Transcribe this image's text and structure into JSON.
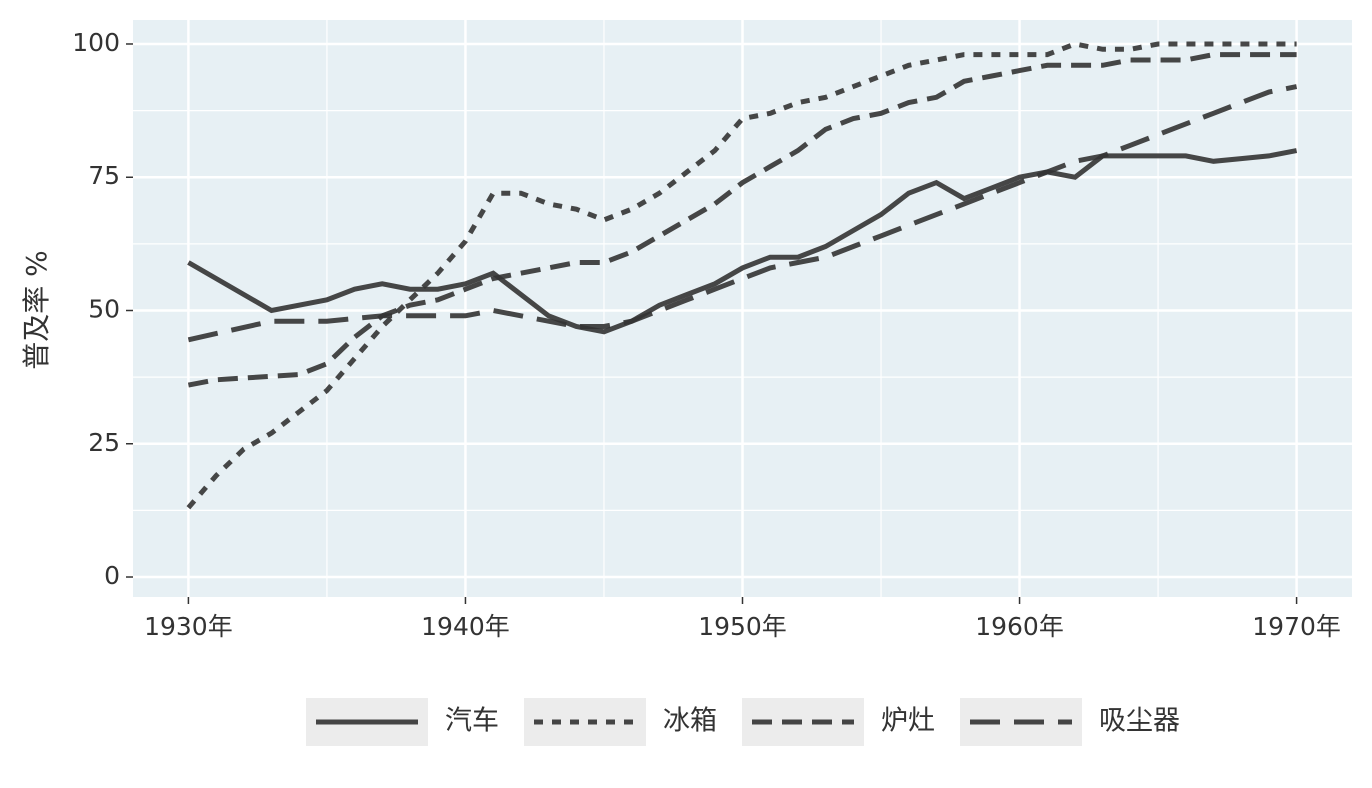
{
  "chart_data": {
    "type": "line",
    "y_label": "普及率 %",
    "xlim": [
      1928,
      1972
    ],
    "ylim": [
      -3.75,
      104.5
    ],
    "xticks": [
      {
        "value": 1930,
        "label": "1930年"
      },
      {
        "value": 1940,
        "label": "1940年"
      },
      {
        "value": 1950,
        "label": "1950年"
      },
      {
        "value": 1960,
        "label": "1960年"
      },
      {
        "value": 1970,
        "label": "1970年"
      }
    ],
    "yticks": [
      0,
      25,
      50,
      75,
      100
    ],
    "grid": true,
    "legend": "bottom",
    "series": [
      {
        "name": "汽车",
        "color": "#333333",
        "linetype": "solid",
        "x": [
          1930,
          1933,
          1935,
          1936,
          1937,
          1938,
          1939,
          1940,
          1941,
          1942,
          1943,
          1944,
          1945,
          1946,
          1947,
          1948,
          1949,
          1950,
          1951,
          1952,
          1953,
          1954,
          1955,
          1956,
          1957,
          1958,
          1959,
          1960,
          1961,
          1962,
          1963,
          1964,
          1965,
          1966,
          1967,
          1968,
          1969,
          1970
        ],
        "values": [
          59,
          50,
          52,
          54,
          55,
          54,
          54,
          55,
          57,
          53,
          49,
          47,
          46,
          48,
          51,
          53,
          55,
          58,
          60,
          60,
          62,
          65,
          68,
          72,
          74,
          71,
          73,
          75,
          76,
          75,
          79,
          79,
          79,
          79,
          78,
          78.5,
          79,
          80
        ]
      },
      {
        "name": "冰箱",
        "color": "#333333",
        "linetype": "dotted",
        "x": [
          1930,
          1931,
          1932,
          1933,
          1934,
          1935,
          1936,
          1937,
          1938,
          1939,
          1940,
          1941,
          1942,
          1943,
          1944,
          1945,
          1946,
          1947,
          1948,
          1949,
          1950,
          1951,
          1952,
          1953,
          1954,
          1955,
          1956,
          1957,
          1958,
          1959,
          1960,
          1961,
          1962,
          1963,
          1964,
          1965,
          1966,
          1967,
          1968,
          1969,
          1970
        ],
        "values": [
          13,
          19,
          24,
          27,
          31,
          35,
          41,
          47,
          52,
          57,
          63,
          72,
          72,
          70,
          69,
          67,
          69,
          72,
          76,
          80,
          86,
          87,
          89,
          90,
          92,
          94,
          96,
          97,
          98,
          98,
          98,
          98,
          100,
          99,
          99,
          100,
          100,
          100,
          100,
          100,
          100
        ]
      },
      {
        "name": "炉灶",
        "color": "#333333",
        "linetype": "dashed",
        "x": [
          1930,
          1931,
          1934,
          1935,
          1936,
          1937,
          1938,
          1939,
          1940,
          1941,
          1942,
          1943,
          1944,
          1945,
          1946,
          1947,
          1948,
          1949,
          1950,
          1951,
          1952,
          1953,
          1954,
          1955,
          1956,
          1957,
          1958,
          1959,
          1960,
          1961,
          1962,
          1963,
          1964,
          1965,
          1966,
          1967,
          1968,
          1969,
          1970
        ],
        "values": [
          36,
          37,
          38,
          40,
          45,
          49,
          51,
          52,
          54,
          56,
          57,
          58,
          59,
          59,
          61,
          64,
          67,
          70,
          74,
          77,
          80,
          84,
          86,
          87,
          89,
          90,
          93,
          94,
          95,
          96,
          96,
          96,
          97,
          97,
          97,
          98,
          98,
          98,
          98
        ]
      },
      {
        "name": "吸尘器",
        "color": "#333333",
        "linetype": "longdash",
        "x": [
          1930,
          1933,
          1935,
          1937,
          1938,
          1939,
          1940,
          1941,
          1942,
          1943,
          1944,
          1945,
          1946,
          1947,
          1948,
          1949,
          1950,
          1951,
          1952,
          1953,
          1954,
          1955,
          1956,
          1957,
          1958,
          1959,
          1960,
          1961,
          1962,
          1963,
          1964,
          1965,
          1966,
          1967,
          1968,
          1969,
          1970
        ],
        "values": [
          44.5,
          48,
          48,
          49,
          49,
          49,
          49,
          50,
          49,
          48,
          47,
          47,
          48,
          50,
          52,
          54,
          56,
          58,
          59,
          60,
          62,
          64,
          66,
          68,
          70,
          72,
          74,
          76,
          78,
          79,
          81,
          83,
          85,
          87,
          89,
          91,
          92
        ]
      }
    ]
  }
}
